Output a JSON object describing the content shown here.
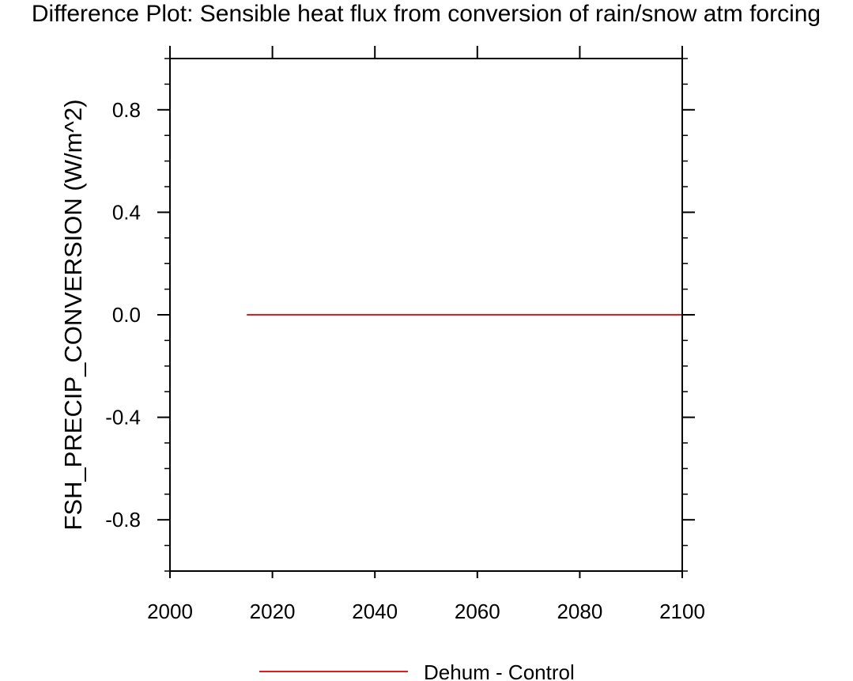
{
  "chart_data": {
    "type": "line",
    "title": "Difference Plot: Sensible heat flux from conversion of rain/snow atm forcing",
    "xlabel": "",
    "ylabel": "FSH_PRECIP_CONVERSION  (W/m^2)",
    "xlim": [
      2000,
      2100
    ],
    "ylim": [
      -1.0,
      1.0
    ],
    "x_ticks": [
      "2000",
      "2020",
      "2040",
      "2060",
      "2080",
      "2100"
    ],
    "y_ticks": [
      "0.8",
      "0.4",
      "0.0",
      "-0.4",
      "-0.8"
    ],
    "grid": false,
    "legend_position": "bottom-center",
    "series": [
      {
        "name": "Dehum - Control",
        "color": "#e41a1c",
        "x": [
          2015,
          2100
        ],
        "y": [
          0.0,
          0.0
        ]
      }
    ]
  }
}
